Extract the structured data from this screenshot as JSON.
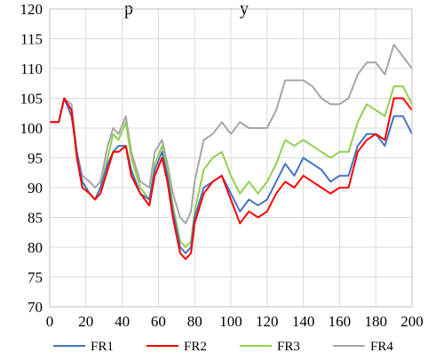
{
  "chart_data": {
    "type": "line",
    "title_fragment": "p                        y",
    "xlim": [
      0,
      200
    ],
    "ylim": [
      70,
      120
    ],
    "x_ticks": [
      0,
      20,
      40,
      60,
      80,
      100,
      120,
      140,
      160,
      180,
      200
    ],
    "y_ticks": [
      70,
      75,
      80,
      85,
      90,
      95,
      100,
      105,
      110,
      115,
      120
    ],
    "grid": true,
    "legend_position": "bottom",
    "x": [
      0,
      5,
      8,
      12,
      15,
      18,
      22,
      25,
      28,
      32,
      35,
      38,
      42,
      45,
      50,
      55,
      58,
      62,
      65,
      68,
      72,
      75,
      78,
      80,
      85,
      90,
      95,
      100,
      105,
      110,
      115,
      120,
      125,
      130,
      135,
      140,
      145,
      150,
      155,
      160,
      165,
      170,
      175,
      180,
      185,
      190,
      195,
      200
    ],
    "series": [
      {
        "name": "FR1",
        "color": "#4472C4",
        "values": [
          101,
          101,
          105,
          102,
          96,
          91,
          89,
          88,
          90,
          94,
          96,
          97,
          97,
          93,
          89,
          88,
          93,
          96,
          92,
          86,
          80,
          79,
          80,
          85,
          90,
          91,
          92,
          89,
          86,
          88,
          87,
          88,
          91,
          94,
          92,
          95,
          94,
          93,
          91,
          92,
          92,
          97,
          99,
          99,
          97,
          102,
          102,
          99
        ]
      },
      {
        "name": "FR2",
        "color": "#FF0000",
        "values": [
          101,
          101,
          105,
          103,
          95,
          90,
          89,
          88,
          89,
          93,
          96,
          96,
          97,
          92,
          89,
          87,
          92,
          95,
          91,
          85,
          79,
          78,
          79,
          84,
          89,
          91,
          92,
          88,
          84,
          86,
          85,
          86,
          89,
          91,
          90,
          92,
          91,
          90,
          89,
          90,
          90,
          96,
          98,
          99,
          98,
          105,
          105,
          103
        ]
      },
      {
        "name": "FR3",
        "color": "#92D050",
        "values": [
          101,
          101,
          105,
          103,
          95,
          91,
          89,
          88,
          90,
          95,
          99,
          98,
          101,
          95,
          90,
          88,
          94,
          97,
          93,
          87,
          81,
          80,
          81,
          86,
          93,
          95,
          96,
          92,
          89,
          91,
          89,
          91,
          94,
          98,
          97,
          98,
          97,
          96,
          95,
          96,
          96,
          101,
          104,
          103,
          102,
          107,
          107,
          104
        ]
      },
      {
        "name": "FR4",
        "color": "#A6A6A6",
        "values": [
          101,
          101,
          105,
          104,
          96,
          92,
          91,
          90,
          91,
          97,
          100,
          99,
          102,
          96,
          91,
          90,
          96,
          98,
          94,
          89,
          85,
          84,
          86,
          91,
          98,
          99,
          101,
          99,
          101,
          100,
          100,
          100,
          103,
          108,
          108,
          108,
          107,
          105,
          104,
          104,
          105,
          109,
          111,
          111,
          109,
          114,
          112,
          110
        ]
      }
    ]
  }
}
